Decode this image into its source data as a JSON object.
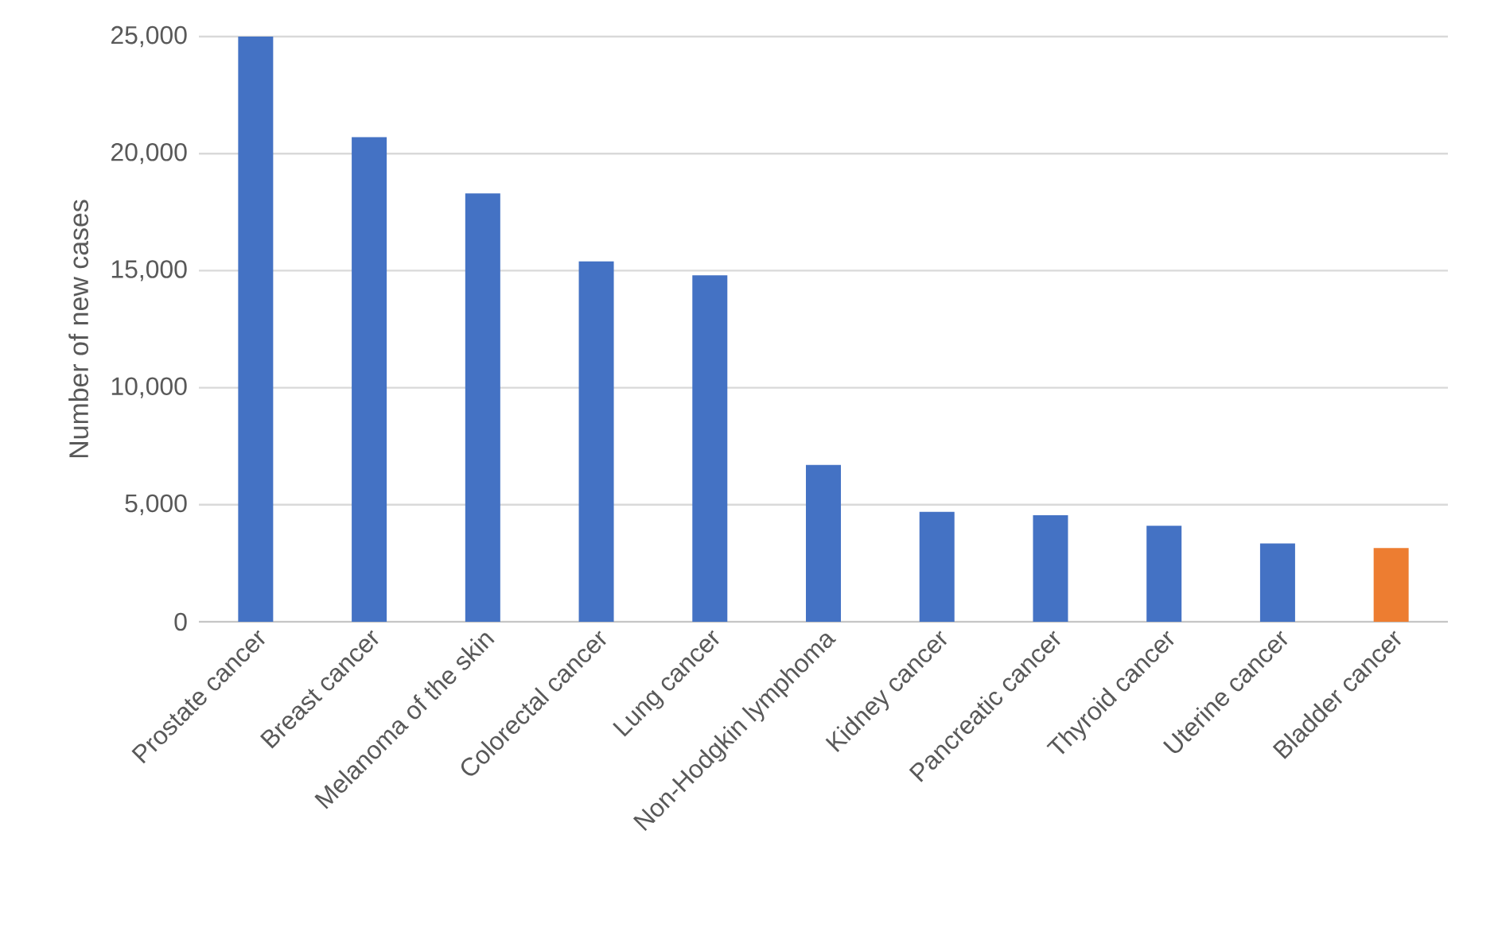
{
  "chart_data": {
    "type": "bar",
    "ylabel": "Number of new cases",
    "categories": [
      "Prostate cancer",
      "Breast cancer",
      "Melanoma of the skin",
      "Colorectal cancer",
      "Lung cancer",
      "Non-Hodgkin lymphoma",
      "Kidney cancer",
      "Pancreatic cancer",
      "Thyroid cancer",
      "Uterine cancer",
      "Bladder cancer"
    ],
    "values": [
      25000,
      20700,
      18300,
      15400,
      14800,
      6700,
      4700,
      4550,
      4100,
      3350,
      3150
    ],
    "colors": [
      "#4472c4",
      "#4472c4",
      "#4472c4",
      "#4472c4",
      "#4472c4",
      "#4472c4",
      "#4472c4",
      "#4472c4",
      "#4472c4",
      "#4472c4",
      "#ed7d31"
    ],
    "ylim": [
      0,
      25000
    ],
    "yticks": [
      0,
      {
        "value": 5000,
        "label": "5,000"
      },
      {
        "value": 10000,
        "label": "10,000"
      },
      {
        "value": 15000,
        "label": "15,000"
      },
      {
        "value": 20000,
        "label": "20,000"
      },
      {
        "value": 25000,
        "label": "25,000"
      }
    ],
    "grid": "y"
  }
}
